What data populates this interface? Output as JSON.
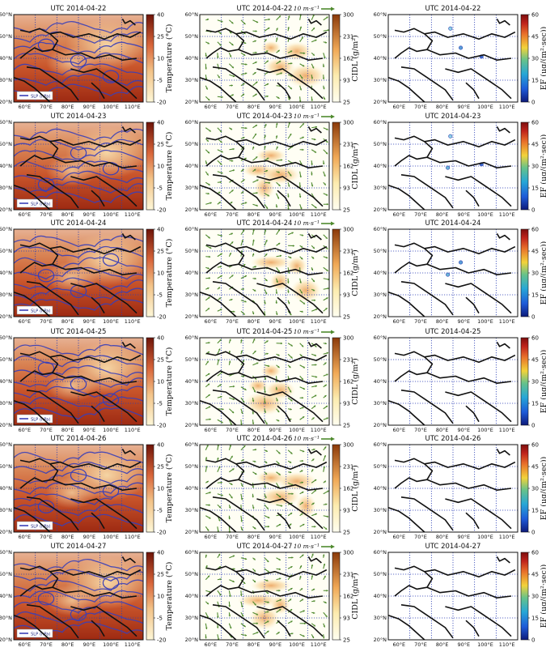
{
  "figure": {
    "dates": [
      "UTC 2014-04-22",
      "UTC 2014-04-23",
      "UTC 2014-04-24",
      "UTC 2014-04-25",
      "UTC 2014-04-26",
      "UTC 2014-04-27"
    ],
    "map_x_ticks": [
      "60°E",
      "70°E",
      "80°E",
      "90°E",
      "100°E",
      "110°E"
    ],
    "map_y_ticks": [
      "60°N",
      "50°N",
      "40°N",
      "30°N",
      "20°N"
    ],
    "map_extent": {
      "lon": [
        55,
        115
      ],
      "lat": [
        20,
        60
      ]
    }
  },
  "chart_data": [
    {
      "type": "heatmap",
      "panel": "temperature",
      "colorbar_label": "Temperature (°C)",
      "colorbar_ticks": [
        "40",
        "25",
        "10",
        "-5",
        "-20"
      ],
      "range": [
        -20,
        40
      ],
      "legend_label": "SLP (hPa)",
      "colors": {
        "low": "#fbf0c8",
        "mid": "#e8945a",
        "high": "#7a1a0c",
        "contour": "#3a3fb8"
      }
    },
    {
      "type": "heatmap",
      "panel": "cidl",
      "colorbar_label": "CIDL (g/m²)",
      "colorbar_ticks": [
        "300",
        "231",
        "162",
        "93",
        "25"
      ],
      "range": [
        25,
        300
      ],
      "wind_key": "10 m·s⁻¹",
      "colors": {
        "low": "#fffde6",
        "high": "#8b3a0a",
        "arrow": "#4f8a2e"
      }
    },
    {
      "type": "heatmap",
      "panel": "ef",
      "colorbar_label": "EF (μg/(m²·sec))",
      "colorbar_ticks": [
        "60",
        "45",
        "30",
        "15",
        "0"
      ],
      "range": [
        0,
        60
      ],
      "colors": {
        "colormap": [
          "#1a237e",
          "#1e5bd8",
          "#27a7d6",
          "#66c28a",
          "#f2d33a",
          "#e8702a",
          "#c0241c",
          "#7d0e0e"
        ]
      }
    }
  ]
}
